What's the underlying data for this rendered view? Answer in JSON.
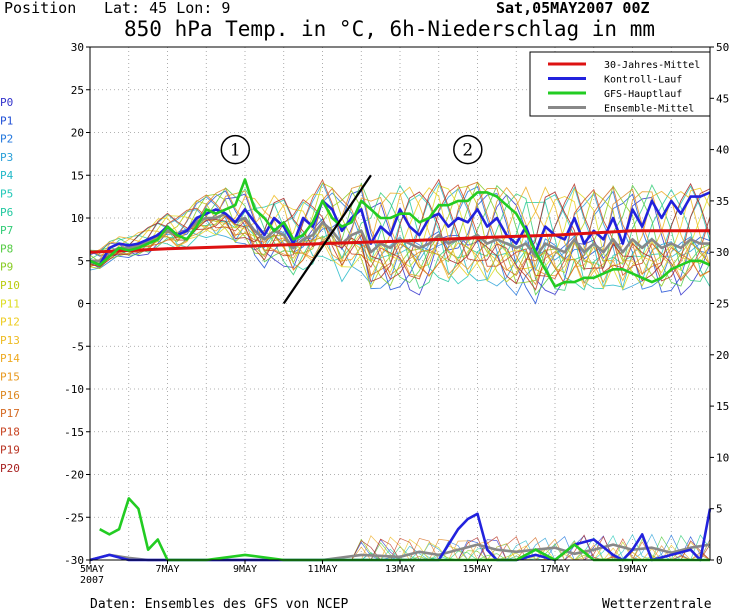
{
  "header": {
    "position_label": "Position",
    "lat_lon": "Lat: 45 Lon: 9",
    "title": "850 hPa Temp. in °C, 6h-Niederschlag in mm",
    "run": "Sat,05MAY2007 00Z"
  },
  "footer": {
    "source": "Daten: Ensembles des GFS von NCEP",
    "credit": "Wetterzentrale"
  },
  "colors": {
    "clim": "#dd1111",
    "control": "#2222dd",
    "gfs": "#22cc22",
    "ensmean": "#888888",
    "annotation_line": "#000000"
  },
  "annotations": [
    {
      "label": "1",
      "x_day": 8.75,
      "y_temp": 18
    },
    {
      "label": "2",
      "x_day": 14.75,
      "y_temp": 18
    }
  ],
  "annotation_line": {
    "x1_day": 10.0,
    "y1_temp": 0,
    "x2_day": 12.25,
    "y2_temp": 15
  },
  "chart_data": {
    "type": "line",
    "title": "850 hPa Temp. in °C, 6h-Niederschlag in mm",
    "x_unit": "days (6h steps)",
    "xlim": [
      5,
      21
    ],
    "x_ticks": [
      {
        "day": 5,
        "label": "5MAY",
        "sub": "2007"
      },
      {
        "day": 7,
        "label": "7MAY"
      },
      {
        "day": 9,
        "label": "9MAY"
      },
      {
        "day": 11,
        "label": "11MAY"
      },
      {
        "day": 13,
        "label": "13MAY"
      },
      {
        "day": 15,
        "label": "15MAY"
      },
      {
        "day": 17,
        "label": "17MAY"
      },
      {
        "day": 19,
        "label": "19MAY"
      }
    ],
    "y_left": {
      "label": "°C",
      "lim": [
        -30,
        30
      ],
      "ticks": [
        30,
        25,
        20,
        15,
        10,
        5,
        0,
        -5,
        -10,
        -15,
        -20,
        -25,
        -30
      ]
    },
    "y_right": {
      "label": "mm",
      "lim": [
        0,
        50
      ],
      "ticks": [
        50,
        45,
        40,
        35,
        30,
        25,
        20,
        15,
        10,
        5,
        0
      ]
    },
    "grid": true,
    "legend_position": "top-right",
    "legend": [
      {
        "name": "30-Jahres-Mittel",
        "color": "#dd1111"
      },
      {
        "name": "Kontroll-Lauf",
        "color": "#2222dd"
      },
      {
        "name": "GFS-Hauptlauf",
        "color": "#22cc22"
      },
      {
        "name": "Ensemble-Mittel",
        "color": "#888888"
      }
    ],
    "members": [
      {
        "name": "P0",
        "color": "#3333cc"
      },
      {
        "name": "P1",
        "color": "#1f4fd6"
      },
      {
        "name": "P2",
        "color": "#2277dd"
      },
      {
        "name": "P3",
        "color": "#2aa0d8"
      },
      {
        "name": "P4",
        "color": "#22b8c8"
      },
      {
        "name": "P5",
        "color": "#22c8b8"
      },
      {
        "name": "P6",
        "color": "#22c8a0"
      },
      {
        "name": "P7",
        "color": "#33cc77"
      },
      {
        "name": "P8",
        "color": "#55cc44"
      },
      {
        "name": "P9",
        "color": "#88cc22"
      },
      {
        "name": "P10",
        "color": "#bbcc11"
      },
      {
        "name": "P11",
        "color": "#dddd22"
      },
      {
        "name": "P12",
        "color": "#eecc22"
      },
      {
        "name": "P13",
        "color": "#eebb22"
      },
      {
        "name": "P14",
        "color": "#eeaa22"
      },
      {
        "name": "P15",
        "color": "#e89a22"
      },
      {
        "name": "P16",
        "color": "#dd8822"
      },
      {
        "name": "P17",
        "color": "#d46a22"
      },
      {
        "name": "P18",
        "color": "#c84422"
      },
      {
        "name": "P19",
        "color": "#b83322"
      },
      {
        "name": "P20",
        "color": "#a82222"
      }
    ],
    "series": [
      {
        "name": "30-Jahres-Mittel",
        "axis": "left",
        "x": [
          5,
          7,
          9,
          11,
          13,
          15,
          17,
          19,
          21
        ],
        "y": [
          6.0,
          6.4,
          6.7,
          7.0,
          7.3,
          7.7,
          8.0,
          8.5,
          8.5
        ]
      },
      {
        "name": "GFS-Hauptlauf",
        "axis": "left",
        "x": [
          5,
          5.25,
          5.5,
          5.75,
          6,
          6.25,
          6.5,
          6.75,
          7,
          7.25,
          7.5,
          7.75,
          8,
          8.25,
          8.5,
          8.75,
          9,
          9.25,
          9.5,
          9.75,
          10,
          10.25,
          10.5,
          10.75,
          11,
          11.25,
          11.5,
          11.75,
          12,
          12.25,
          12.5,
          12.75,
          13,
          13.25,
          13.5,
          13.75,
          14,
          14.25,
          14.5,
          14.75,
          15,
          15.25,
          15.5,
          15.75,
          16,
          16.25,
          16.5,
          16.75,
          17,
          17.25,
          17.5,
          17.75,
          18,
          18.25,
          18.5,
          18.75,
          19,
          19.25,
          19.5,
          19.75,
          20,
          20.25,
          20.5,
          20.75,
          21
        ],
        "y": [
          5,
          4.5,
          5.5,
          6.5,
          6.2,
          6.5,
          7,
          7.5,
          9,
          8,
          7.5,
          9,
          11,
          10.5,
          11,
          11.5,
          14.5,
          11,
          10,
          8.5,
          9.5,
          7.5,
          8,
          9.5,
          12,
          10,
          9,
          9.5,
          12,
          11,
          10,
          10,
          10.5,
          10.5,
          9.5,
          10,
          11.5,
          11.5,
          12,
          12,
          13,
          13,
          12.5,
          11.5,
          10.5,
          8.5,
          6,
          4,
          2,
          2.5,
          2.5,
          3,
          3,
          3.5,
          4,
          4,
          3.5,
          3,
          2.5,
          3,
          4,
          4.5,
          5,
          5,
          4.5
        ]
      },
      {
        "name": "Kontroll-Lauf",
        "axis": "left",
        "x": [
          5,
          5.25,
          5.5,
          5.75,
          6,
          6.25,
          6.5,
          6.75,
          7,
          7.25,
          7.5,
          7.75,
          8,
          8.25,
          8.5,
          8.75,
          9,
          9.25,
          9.5,
          9.75,
          10,
          10.25,
          10.5,
          10.75,
          11,
          11.25,
          11.5,
          11.75,
          12,
          12.25,
          12.5,
          12.75,
          13,
          13.25,
          13.5,
          13.75,
          14,
          14.25,
          14.5,
          14.75,
          15,
          15.25,
          15.5,
          15.75,
          16,
          16.25,
          16.5,
          16.75,
          17,
          17.25,
          17.5,
          17.75,
          18,
          18.25,
          18.5,
          18.75,
          19,
          19.25,
          19.5,
          19.75,
          20,
          20.25,
          20.5,
          20.75,
          21
        ],
        "y": [
          5,
          4.5,
          6.5,
          7,
          6.8,
          7,
          7.5,
          8,
          9,
          8,
          8.5,
          10,
          10.5,
          11,
          10.5,
          9.5,
          11,
          9.5,
          8,
          10,
          9,
          7,
          10,
          9,
          12,
          11,
          8.5,
          10,
          11,
          7,
          9,
          8,
          11,
          9,
          8,
          10,
          10.5,
          9,
          10,
          9.5,
          11,
          9,
          10,
          8,
          7,
          9,
          6,
          9,
          8,
          7.5,
          10,
          7,
          8.5,
          7.5,
          10,
          7,
          11,
          9,
          12,
          10,
          12,
          10.5,
          12.5,
          12.5,
          13
        ]
      },
      {
        "name": "Ensemble-Mittel",
        "axis": "left",
        "x": [
          5,
          5.25,
          5.5,
          5.75,
          6,
          6.25,
          6.5,
          6.75,
          7,
          7.25,
          7.5,
          7.75,
          8,
          8.25,
          8.5,
          8.75,
          9,
          9.25,
          9.5,
          9.75,
          10,
          10.25,
          10.5,
          10.75,
          11,
          11.25,
          11.5,
          11.75,
          12,
          12.25,
          12.5,
          12.75,
          13,
          13.25,
          13.5,
          13.75,
          14,
          14.25,
          14.5,
          14.75,
          15,
          15.25,
          15.5,
          15.75,
          16,
          16.25,
          16.5,
          16.75,
          17,
          17.25,
          17.5,
          17.75,
          18,
          18.25,
          18.5,
          18.75,
          19,
          19.25,
          19.5,
          19.75,
          20,
          20.25,
          20.5,
          20.75,
          21
        ],
        "y": [
          5,
          5,
          6,
          6.5,
          6.5,
          6.8,
          7.2,
          8,
          8.5,
          8,
          8.5,
          9.5,
          10,
          10,
          10.5,
          9.5,
          10,
          8.5,
          7.5,
          8.5,
          8,
          6.5,
          7.5,
          8,
          9.5,
          8.5,
          7,
          8,
          8.5,
          6,
          7,
          6.5,
          7.5,
          7,
          6.5,
          7,
          8,
          7,
          7.5,
          7.5,
          8,
          7,
          7.5,
          7,
          6.5,
          7,
          5.5,
          7,
          6.5,
          6,
          7.5,
          6,
          7,
          6,
          7.5,
          6,
          7.5,
          6.5,
          7.5,
          6.5,
          7,
          6.5,
          7.5,
          7,
          7
        ]
      },
      {
        "name": "GFS-Hauptlauf Niederschlag",
        "axis": "right",
        "x": [
          5.25,
          5.5,
          5.75,
          6,
          6.25,
          6.5,
          6.75,
          7,
          7.25,
          8,
          9,
          10,
          11,
          12,
          13,
          14,
          15,
          16,
          16.5,
          17,
          17.5,
          18,
          18.5,
          19,
          19.5,
          20,
          20.5,
          21
        ],
        "y": [
          3,
          2.5,
          3,
          6,
          5,
          1,
          2,
          0,
          0,
          0,
          0.5,
          0,
          0,
          0,
          0,
          0,
          0,
          0,
          1,
          0,
          1.5,
          0,
          0,
          0,
          0,
          0,
          0,
          0
        ]
      },
      {
        "name": "Kontroll-Lauf Niederschlag",
        "axis": "right",
        "x": [
          5,
          5.5,
          6,
          6.5,
          7,
          8,
          9,
          10,
          11,
          12,
          13,
          14,
          14.5,
          14.75,
          15,
          15.25,
          15.5,
          16,
          16.5,
          17,
          17.5,
          18,
          18.5,
          18.75,
          19,
          19.25,
          19.5,
          20,
          20.5,
          20.75,
          21
        ],
        "y": [
          0,
          0.5,
          0,
          0,
          0,
          0,
          0,
          0,
          0,
          0,
          0,
          0,
          3,
          4,
          4.5,
          1,
          0,
          0,
          0.5,
          0,
          1.5,
          2,
          0.5,
          0,
          1,
          2.5,
          0,
          0.5,
          1,
          0,
          5
        ]
      },
      {
        "name": "Ensemble-Mittel Niederschlag",
        "axis": "right",
        "x": [
          5,
          5.5,
          6,
          6.5,
          7,
          8,
          9,
          10,
          11,
          12,
          13,
          13.5,
          14,
          14.5,
          15,
          15.5,
          16,
          16.5,
          17,
          17.5,
          18,
          18.5,
          19,
          19.5,
          20,
          20.5,
          21
        ],
        "y": [
          0,
          0.5,
          0.2,
          0,
          0,
          0,
          0,
          0,
          0,
          0.5,
          0.3,
          0.8,
          0.5,
          1,
          1.5,
          1,
          0.8,
          1,
          1.2,
          0.6,
          1,
          1.5,
          1,
          1.2,
          0.7,
          1.2,
          1.5
        ]
      }
    ]
  }
}
